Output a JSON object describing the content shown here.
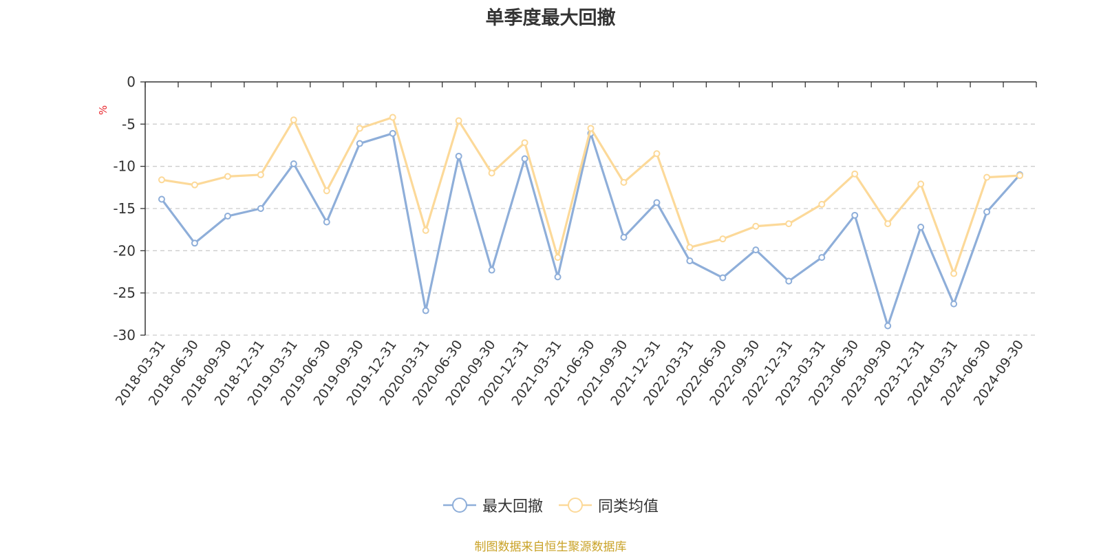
{
  "chart_data": {
    "type": "line",
    "title": "单季度最大回撤",
    "ylabel": "%",
    "ylim": [
      -30,
      0
    ],
    "yticks": [
      0,
      -5,
      -10,
      -15,
      -20,
      -25,
      -30
    ],
    "grid": true,
    "legend_position": "bottom",
    "categories": [
      "2018-03-31",
      "2018-06-30",
      "2018-09-30",
      "2018-12-31",
      "2019-03-31",
      "2019-06-30",
      "2019-09-30",
      "2019-12-31",
      "2020-03-31",
      "2020-06-30",
      "2020-09-30",
      "2020-12-31",
      "2021-03-31",
      "2021-06-30",
      "2021-09-30",
      "2021-12-31",
      "2022-03-31",
      "2022-06-30",
      "2022-09-30",
      "2022-12-31",
      "2023-03-31",
      "2023-06-30",
      "2023-09-30",
      "2023-12-31",
      "2024-03-31",
      "2024-06-30",
      "2024-09-30"
    ],
    "series": [
      {
        "name": "最大回撤",
        "color": "#8eaed9",
        "values": [
          -13.9,
          -19.1,
          -15.9,
          -15.0,
          -9.7,
          -16.6,
          -7.3,
          -6.1,
          -27.1,
          -8.8,
          -22.3,
          -9.1,
          -23.1,
          -6.1,
          -18.4,
          -14.3,
          -21.2,
          -23.2,
          -19.9,
          -23.6,
          -20.8,
          -15.8,
          -28.9,
          -17.2,
          -26.3,
          -15.4,
          -11.0
        ]
      },
      {
        "name": "同类均值",
        "color": "#fcd999",
        "values": [
          -11.6,
          -12.2,
          -11.2,
          -11.0,
          -4.5,
          -12.9,
          -5.5,
          -4.2,
          -17.6,
          -4.6,
          -10.8,
          -7.2,
          -20.8,
          -5.5,
          -11.9,
          -8.5,
          -19.6,
          -18.6,
          -17.1,
          -16.8,
          -14.5,
          -10.9,
          -16.8,
          -12.1,
          -22.7,
          -11.3,
          -11.1
        ]
      }
    ]
  },
  "footer": {
    "source": "制图数据来自恒生聚源数据库"
  }
}
